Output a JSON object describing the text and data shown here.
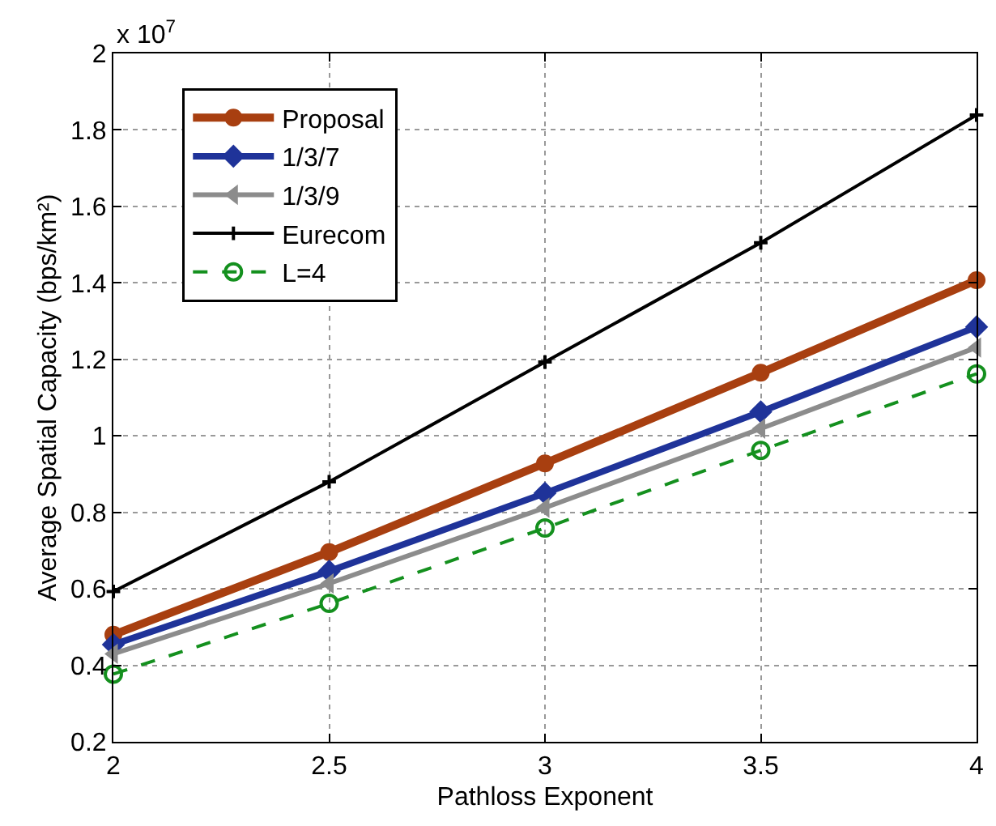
{
  "chart_data": {
    "type": "line",
    "xlabel": "Pathloss Exponent",
    "ylabel": "Average Spatial Capacity (bps/km²)",
    "annotations": [
      "x 10$^{7}$"
    ],
    "x": [
      2,
      2.5,
      3,
      3.5,
      4
    ],
    "series": [
      {
        "name": "Proposal",
        "color": "#a83f10",
        "marker": "circle",
        "line_style": "solid",
        "values": [
          0.48,
          0.696,
          0.928,
          1.165,
          1.407
        ]
      },
      {
        "name": "1/3/7",
        "color": "#1f3399",
        "marker": "diamond",
        "line_style": "solid",
        "values": [
          0.454,
          0.646,
          0.85,
          1.063,
          1.285
        ]
      },
      {
        "name": "1/3/9",
        "color": "#8c8c8c",
        "marker": "triangle",
        "line_style": "solid",
        "values": [
          0.43,
          0.614,
          0.812,
          1.019,
          1.231
        ]
      },
      {
        "name": "Eurecom",
        "color": "#000000",
        "marker": "cross",
        "line_style": "solid",
        "values": [
          0.593,
          0.88,
          1.193,
          1.505,
          1.839
        ]
      },
      {
        "name": "L=4",
        "color": "#14901e",
        "marker": "circle",
        "line_style": "dashed",
        "values": [
          0.377,
          0.562,
          0.759,
          0.962,
          1.162
        ]
      }
    ],
    "xlim": [
      2,
      4
    ],
    "xticks": [
      2,
      2.5,
      3,
      3.5,
      4
    ],
    "ylim": [
      0.2,
      2
    ],
    "yticks": [
      0.2,
      0.4,
      0.6,
      0.8,
      1,
      1.2,
      1.4,
      1.6,
      1.8,
      2
    ],
    "grid": true,
    "legend": "top left"
  }
}
